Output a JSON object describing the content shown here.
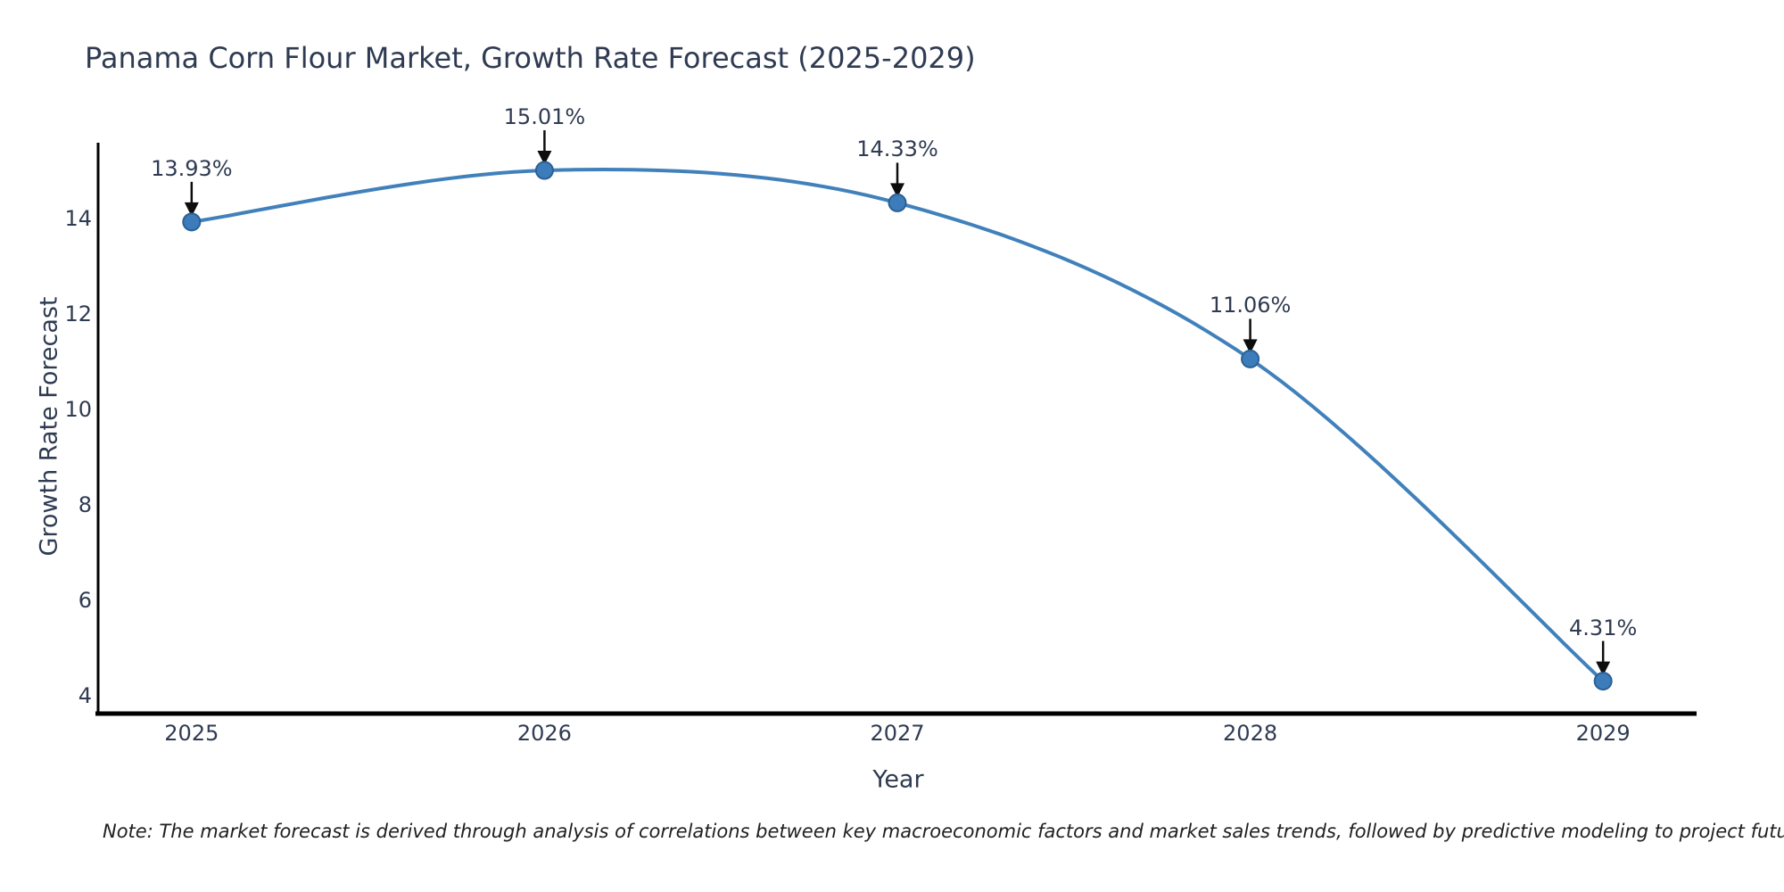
{
  "chart_data": {
    "type": "line",
    "title": "Panama Corn Flour Market, Growth Rate Forecast (2025-2029)",
    "xlabel": "Year",
    "ylabel": "Growth Rate Forecast",
    "x": [
      2025,
      2026,
      2027,
      2028,
      2029
    ],
    "values": [
      13.93,
      15.01,
      14.33,
      11.06,
      4.31
    ],
    "point_labels": [
      "13.93%",
      "15.01%",
      "14.33%",
      "11.06%",
      "4.31%"
    ],
    "xtick_labels": [
      "2025",
      "2026",
      "2027",
      "2028",
      "2029"
    ],
    "ytick_values": [
      4,
      6,
      8,
      10,
      12,
      14
    ],
    "xlim": [
      2024.735,
      2029.265
    ],
    "ylim": [
      3.63,
      15.59
    ],
    "grid": false,
    "legend": null,
    "line_color": "#4181bb",
    "marker_color": "#3d7cba",
    "marker_edge_color": "#2b6094",
    "axis_color": "#000000",
    "text_color": "#2f3b52",
    "arrow_color": "#0d0d0d"
  },
  "note": {
    "text": "Note: The market forecast is derived through analysis of correlations between key macroeconomic factors and market sales trends, followed by predictive modeling to project future sales"
  }
}
